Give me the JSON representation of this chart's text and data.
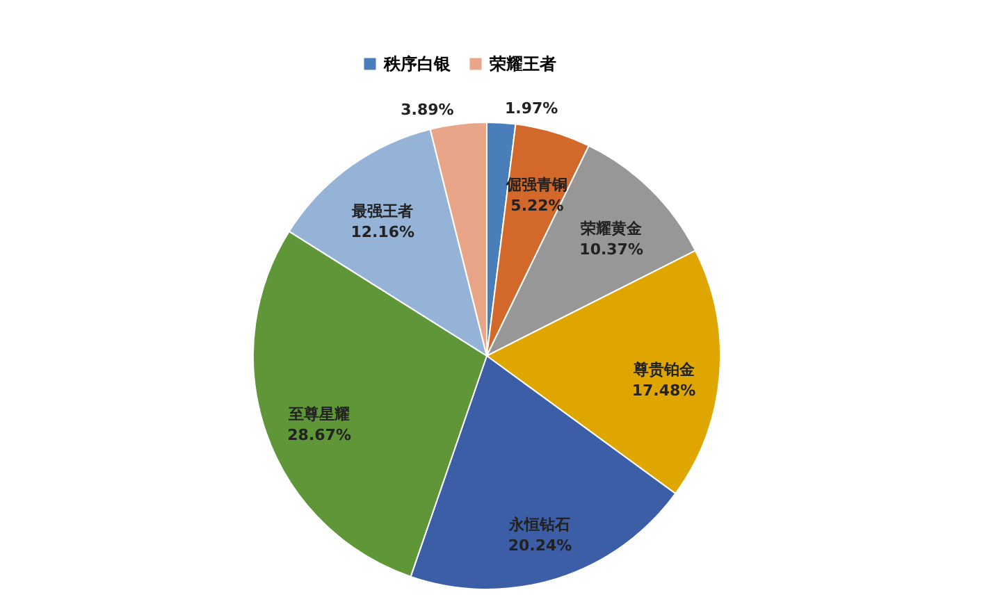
{
  "chart_data": {
    "type": "pie",
    "categories": [
      "秩序白银",
      "倔强青铜",
      "荣耀黄金",
      "尊贵铂金",
      "永恒钻石",
      "至尊星耀",
      "最强王者",
      "荣耀王者"
    ],
    "values": [
      1.97,
      5.22,
      10.37,
      17.48,
      20.24,
      28.67,
      12.16,
      3.89
    ],
    "value_labels": [
      "1.97%",
      "5.22%",
      "10.37%",
      "17.48%",
      "20.24%",
      "28.67%",
      "12.16%",
      "3.89%"
    ],
    "colors": [
      "#4a7ebb",
      "#d2692a",
      "#979797",
      "#dfa600",
      "#3b5ea6",
      "#5f9638",
      "#95b3d7",
      "#e9a587"
    ],
    "legend": "top"
  }
}
